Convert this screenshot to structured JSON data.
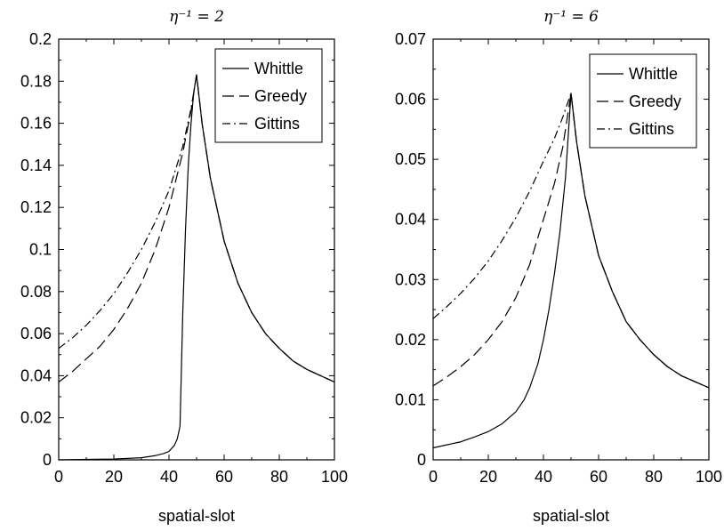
{
  "chart_data": [
    {
      "type": "line",
      "title": "η⁻¹ = 2",
      "xlabel": "spatial-slot",
      "ylabel": "",
      "xlim": [
        0,
        100
      ],
      "ylim": [
        0,
        0.2
      ],
      "xticks": [
        "0",
        "20",
        "40",
        "60",
        "80",
        "100"
      ],
      "yticks": [
        "0",
        "0.02",
        "0.04",
        "0.06",
        "0.08",
        "0.1",
        "0.12",
        "0.14",
        "0.16",
        "0.18",
        "0.2"
      ],
      "legend_position": "top-right",
      "grid": false,
      "series": [
        {
          "name": "Whittle",
          "style": "solid",
          "x": [
            0,
            10,
            20,
            30,
            35,
            38,
            40,
            42,
            43,
            44,
            45,
            46,
            47,
            48,
            49,
            50,
            52,
            55,
            60,
            65,
            70,
            75,
            80,
            85,
            90,
            95,
            100
          ],
          "y": [
            0.0,
            0.0002,
            0.0004,
            0.001,
            0.002,
            0.003,
            0.004,
            0.007,
            0.01,
            0.016,
            0.07,
            0.11,
            0.14,
            0.16,
            0.175,
            0.183,
            0.16,
            0.134,
            0.104,
            0.084,
            0.07,
            0.06,
            0.053,
            0.047,
            0.043,
            0.04,
            0.037
          ]
        },
        {
          "name": "Greedy",
          "style": "dashed",
          "x": [
            0,
            5,
            10,
            15,
            20,
            25,
            30,
            35,
            40,
            45,
            48,
            50,
            52,
            55,
            60,
            65,
            70,
            75,
            80,
            85,
            90,
            95,
            100
          ],
          "y": [
            0.037,
            0.042,
            0.048,
            0.054,
            0.062,
            0.072,
            0.084,
            0.1,
            0.12,
            0.146,
            0.166,
            0.183,
            0.16,
            0.134,
            0.104,
            0.084,
            0.07,
            0.06,
            0.053,
            0.047,
            0.043,
            0.04,
            0.037
          ]
        },
        {
          "name": "Gittins",
          "style": "dashdot",
          "x": [
            0,
            5,
            10,
            15,
            20,
            25,
            30,
            35,
            40,
            45,
            48,
            50,
            52,
            55,
            60,
            65,
            70,
            75,
            80,
            85,
            90,
            95,
            100
          ],
          "y": [
            0.053,
            0.058,
            0.064,
            0.071,
            0.079,
            0.089,
            0.1,
            0.113,
            0.128,
            0.149,
            0.167,
            0.183,
            0.16,
            0.134,
            0.104,
            0.084,
            0.07,
            0.06,
            0.053,
            0.047,
            0.043,
            0.04,
            0.037
          ]
        }
      ]
    },
    {
      "type": "line",
      "title": "η⁻¹ = 6",
      "xlabel": "spatial-slot",
      "ylabel": "",
      "xlim": [
        0,
        100
      ],
      "ylim": [
        0,
        0.07
      ],
      "xticks": [
        "0",
        "20",
        "40",
        "60",
        "80",
        "100"
      ],
      "yticks": [
        "0",
        "0.01",
        "0.02",
        "0.03",
        "0.04",
        "0.05",
        "0.06",
        "0.07"
      ],
      "legend_position": "top-right",
      "grid": false,
      "series": [
        {
          "name": "Whittle",
          "style": "solid",
          "x": [
            0,
            5,
            10,
            15,
            20,
            25,
            30,
            33,
            35,
            38,
            40,
            42,
            44,
            46,
            48,
            50,
            52,
            55,
            60,
            65,
            70,
            75,
            80,
            85,
            90,
            95,
            100
          ],
          "y": [
            0.002,
            0.0025,
            0.003,
            0.0038,
            0.0047,
            0.006,
            0.008,
            0.01,
            0.012,
            0.016,
            0.02,
            0.025,
            0.031,
            0.038,
            0.047,
            0.061,
            0.053,
            0.044,
            0.034,
            0.028,
            0.023,
            0.02,
            0.0175,
            0.0155,
            0.014,
            0.013,
            0.012
          ]
        },
        {
          "name": "Greedy",
          "style": "dashed",
          "x": [
            0,
            5,
            10,
            15,
            20,
            25,
            30,
            35,
            40,
            44,
            47,
            50,
            52,
            55,
            60,
            65,
            70,
            75,
            80,
            85,
            90,
            95,
            100
          ],
          "y": [
            0.0123,
            0.0138,
            0.0155,
            0.0175,
            0.02,
            0.023,
            0.027,
            0.0325,
            0.04,
            0.046,
            0.052,
            0.061,
            0.053,
            0.044,
            0.034,
            0.028,
            0.023,
            0.02,
            0.0175,
            0.0155,
            0.014,
            0.013,
            0.012
          ]
        },
        {
          "name": "Gittins",
          "style": "dashdot",
          "x": [
            0,
            5,
            10,
            15,
            20,
            25,
            30,
            35,
            40,
            44,
            47,
            50,
            52,
            55,
            60,
            65,
            70,
            75,
            80,
            85,
            90,
            95,
            100
          ],
          "y": [
            0.0235,
            0.0255,
            0.0277,
            0.0302,
            0.0331,
            0.0365,
            0.0403,
            0.0447,
            0.0497,
            0.0535,
            0.057,
            0.061,
            0.053,
            0.044,
            0.034,
            0.028,
            0.023,
            0.02,
            0.0175,
            0.0155,
            0.014,
            0.013,
            0.012
          ]
        }
      ]
    }
  ]
}
